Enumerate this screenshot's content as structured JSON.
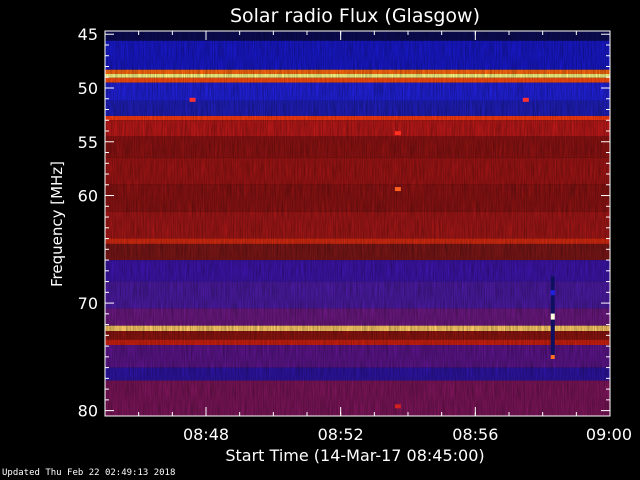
{
  "chart_data": {
    "type": "heatmap",
    "title": "Solar radio Flux (Glasgow)",
    "xlabel": "Start Time (14-Mar-17 08:45:00)",
    "ylabel": "Frequency [MHz]",
    "x_ticks": [
      "08:48",
      "08:52",
      "08:56",
      "09:00"
    ],
    "x_tick_minutes": [
      48,
      52,
      56,
      60
    ],
    "xlim_minutes": [
      45,
      60
    ],
    "y_ticks": [
      "45",
      "50",
      "55",
      "60",
      "70",
      "80"
    ],
    "y_tick_values": [
      45,
      50,
      55,
      60,
      70,
      80
    ],
    "ylim": [
      44.7,
      80.5
    ],
    "bands": [
      {
        "from": 44.7,
        "to": 45.6,
        "color": "#0b0b55"
      },
      {
        "from": 45.6,
        "to": 48.3,
        "color": "#1818c8"
      },
      {
        "from": 48.3,
        "to": 48.7,
        "color": "#ff6a10"
      },
      {
        "from": 48.7,
        "to": 49.05,
        "color": "#ffff88"
      },
      {
        "from": 49.05,
        "to": 49.5,
        "color": "#ff5010"
      },
      {
        "from": 49.5,
        "to": 51.2,
        "color": "#2020d8"
      },
      {
        "from": 51.2,
        "to": 52.6,
        "color": "#1e1eb8"
      },
      {
        "from": 52.6,
        "to": 53.0,
        "color": "#ff3a10"
      },
      {
        "from": 53.0,
        "to": 54.5,
        "color": "#b81818"
      },
      {
        "from": 54.5,
        "to": 56.5,
        "color": "#8c1212"
      },
      {
        "from": 56.5,
        "to": 59.0,
        "color": "#9c1414"
      },
      {
        "from": 59.0,
        "to": 61.5,
        "color": "#8a1212"
      },
      {
        "from": 61.5,
        "to": 64.0,
        "color": "#a01616"
      },
      {
        "from": 64.0,
        "to": 64.5,
        "color": "#d82a10"
      },
      {
        "from": 64.5,
        "to": 66.0,
        "color": "#7a1616"
      },
      {
        "from": 66.0,
        "to": 68.0,
        "color": "#3c14a8"
      },
      {
        "from": 68.0,
        "to": 70.5,
        "color": "#4a1aa0"
      },
      {
        "from": 70.5,
        "to": 72.1,
        "color": "#6a1880"
      },
      {
        "from": 72.1,
        "to": 72.6,
        "color": "#ffcc66"
      },
      {
        "from": 72.6,
        "to": 73.4,
        "color": "#8a1410"
      },
      {
        "from": 73.4,
        "to": 73.9,
        "color": "#cc2010"
      },
      {
        "from": 73.9,
        "to": 76.0,
        "color": "#5a1488"
      },
      {
        "from": 76.0,
        "to": 77.2,
        "color": "#2c14a0"
      },
      {
        "from": 77.2,
        "to": 80.5,
        "color": "#7a1458"
      }
    ],
    "spots": [
      {
        "minute": 47.6,
        "freq": 51.1,
        "color": "#ff3030"
      },
      {
        "minute": 57.5,
        "freq": 51.1,
        "color": "#ff3030"
      },
      {
        "minute": 53.7,
        "freq": 59.4,
        "color": "#ff6020"
      },
      {
        "minute": 53.7,
        "freq": 54.2,
        "color": "#ff3020"
      },
      {
        "minute": 53.7,
        "freq": 79.6,
        "color": "#d02020"
      }
    ],
    "burst": {
      "minute": 58.3,
      "from": 67.5,
      "to": 75.2
    }
  },
  "footer": "Updated Thu Feb 22 02:49:13 2018"
}
